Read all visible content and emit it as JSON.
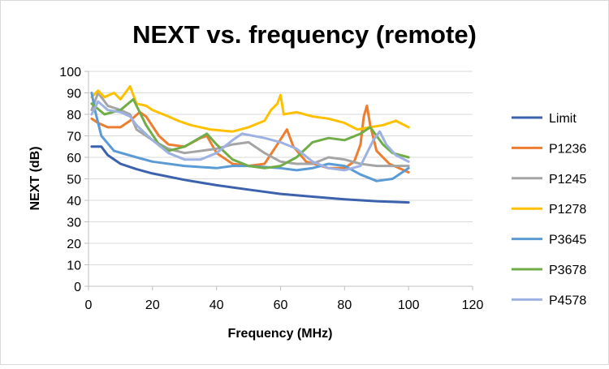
{
  "chart_data": {
    "type": "line",
    "title": "NEXT vs. frequency (remote)",
    "xlabel": "Frequency (MHz)",
    "ylabel": "NEXT (dB)",
    "xlim": [
      0,
      120
    ],
    "ylim": [
      0,
      100
    ],
    "xticks": [
      "0",
      "20",
      "40",
      "60",
      "80",
      "100",
      "120"
    ],
    "yticks": [
      "0",
      "10",
      "20",
      "30",
      "40",
      "50",
      "60",
      "70",
      "80",
      "90",
      "100"
    ],
    "grid": "horizontal",
    "legend": "right",
    "series": [
      {
        "name": "Limit",
        "color": "#3c62ae",
        "points": [
          [
            1,
            65
          ],
          [
            4,
            65
          ],
          [
            6,
            61
          ],
          [
            10,
            57
          ],
          [
            15,
            54.5
          ],
          [
            20,
            52.5
          ],
          [
            30,
            49.5
          ],
          [
            40,
            47
          ],
          [
            50,
            45
          ],
          [
            60,
            43
          ],
          [
            70,
            41.7
          ],
          [
            80,
            40.5
          ],
          [
            90,
            39.6
          ],
          [
            100,
            39
          ]
        ]
      },
      {
        "name": "P1236",
        "color": "#ed7d31",
        "points": [
          [
            1,
            78
          ],
          [
            3,
            76
          ],
          [
            6,
            74
          ],
          [
            10,
            74
          ],
          [
            13,
            77
          ],
          [
            16,
            81
          ],
          [
            18,
            79
          ],
          [
            22,
            70
          ],
          [
            25,
            66
          ],
          [
            30,
            65
          ],
          [
            35,
            69
          ],
          [
            37,
            70
          ],
          [
            40,
            62
          ],
          [
            45,
            57
          ],
          [
            50,
            56
          ],
          [
            55,
            57
          ],
          [
            59,
            66
          ],
          [
            62,
            73
          ],
          [
            64,
            65
          ],
          [
            68,
            58
          ],
          [
            75,
            55
          ],
          [
            80,
            55
          ],
          [
            83,
            58
          ],
          [
            85,
            66
          ],
          [
            86,
            79
          ],
          [
            87,
            84
          ],
          [
            88,
            75
          ],
          [
            90,
            63
          ],
          [
            94,
            57
          ],
          [
            100,
            53
          ]
        ]
      },
      {
        "name": "P1245",
        "color": "#a5a5a5",
        "points": [
          [
            1,
            82
          ],
          [
            3,
            90
          ],
          [
            6,
            84
          ],
          [
            10,
            82
          ],
          [
            13,
            80
          ],
          [
            15,
            73
          ],
          [
            20,
            68
          ],
          [
            25,
            64
          ],
          [
            30,
            62
          ],
          [
            35,
            63
          ],
          [
            40,
            64
          ],
          [
            45,
            66
          ],
          [
            50,
            67
          ],
          [
            55,
            62
          ],
          [
            60,
            58
          ],
          [
            65,
            57
          ],
          [
            70,
            57
          ],
          [
            75,
            60
          ],
          [
            80,
            59
          ],
          [
            85,
            57
          ],
          [
            90,
            56
          ],
          [
            95,
            56
          ],
          [
            100,
            56
          ]
        ]
      },
      {
        "name": "P1278",
        "color": "#ffc000",
        "points": [
          [
            1,
            88
          ],
          [
            3,
            91
          ],
          [
            5,
            88
          ],
          [
            8,
            90
          ],
          [
            10,
            87
          ],
          [
            13,
            93
          ],
          [
            15,
            85
          ],
          [
            18,
            84
          ],
          [
            20,
            82
          ],
          [
            25,
            79
          ],
          [
            28,
            77
          ],
          [
            32,
            75
          ],
          [
            38,
            73
          ],
          [
            45,
            72
          ],
          [
            50,
            74
          ],
          [
            55,
            77
          ],
          [
            57,
            82
          ],
          [
            59,
            85
          ],
          [
            60,
            89
          ],
          [
            61,
            80
          ],
          [
            65,
            81
          ],
          [
            70,
            79
          ],
          [
            75,
            78
          ],
          [
            80,
            76
          ],
          [
            84,
            73
          ],
          [
            88,
            74
          ],
          [
            92,
            75
          ],
          [
            96,
            77
          ],
          [
            100,
            74
          ]
        ]
      },
      {
        "name": "P3645",
        "color": "#5b9bd5",
        "points": [
          [
            1,
            90
          ],
          [
            2,
            82
          ],
          [
            4,
            70
          ],
          [
            8,
            63
          ],
          [
            15,
            60
          ],
          [
            20,
            58
          ],
          [
            30,
            56
          ],
          [
            40,
            55
          ],
          [
            45,
            56
          ],
          [
            50,
            56
          ],
          [
            60,
            55
          ],
          [
            65,
            54
          ],
          [
            70,
            55
          ],
          [
            75,
            57
          ],
          [
            80,
            56
          ],
          [
            85,
            52
          ],
          [
            90,
            49
          ],
          [
            95,
            50
          ],
          [
            100,
            55
          ]
        ]
      },
      {
        "name": "P3678",
        "color": "#70ad47",
        "points": [
          [
            1,
            85
          ],
          [
            5,
            80
          ],
          [
            10,
            82
          ],
          [
            14,
            87
          ],
          [
            18,
            75
          ],
          [
            22,
            66
          ],
          [
            25,
            63
          ],
          [
            30,
            65
          ],
          [
            37,
            71
          ],
          [
            40,
            66
          ],
          [
            45,
            59
          ],
          [
            50,
            56
          ],
          [
            55,
            55
          ],
          [
            60,
            56
          ],
          [
            65,
            60
          ],
          [
            70,
            67
          ],
          [
            75,
            69
          ],
          [
            80,
            68
          ],
          [
            85,
            71
          ],
          [
            88,
            74
          ],
          [
            92,
            66
          ],
          [
            95,
            62
          ],
          [
            100,
            60
          ]
        ]
      },
      {
        "name": "P4578",
        "color": "#9db2e2",
        "points": [
          [
            1,
            80
          ],
          [
            3,
            86
          ],
          [
            6,
            82
          ],
          [
            10,
            81
          ],
          [
            13,
            79
          ],
          [
            15,
            75
          ],
          [
            20,
            68
          ],
          [
            25,
            62
          ],
          [
            30,
            59
          ],
          [
            35,
            59
          ],
          [
            40,
            62
          ],
          [
            45,
            68
          ],
          [
            48,
            71
          ],
          [
            55,
            69
          ],
          [
            60,
            67
          ],
          [
            65,
            64
          ],
          [
            70,
            58
          ],
          [
            75,
            55
          ],
          [
            80,
            54
          ],
          [
            85,
            56
          ],
          [
            89,
            68
          ],
          [
            91,
            72
          ],
          [
            93,
            66
          ],
          [
            96,
            61
          ],
          [
            100,
            58
          ]
        ]
      }
    ]
  }
}
